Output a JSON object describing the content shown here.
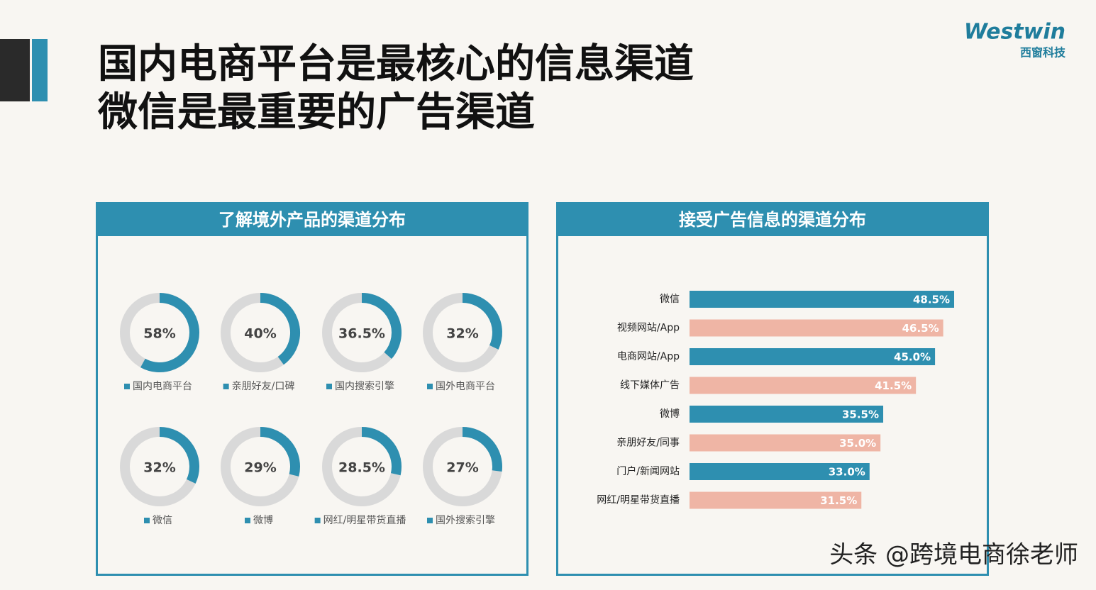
{
  "header": {
    "title": [
      "国内电商平台是最核心的信息渠道",
      "微信是最重要的广告渠道"
    ],
    "logo": "Westwin",
    "logo_sub": "西窗科技"
  },
  "chart_data": [
    {
      "type": "donut",
      "title": "了解境外产品的渠道分布",
      "categories": [
        "国内电商平台",
        "亲朋好友/口碑",
        "国内搜索引擎",
        "国外电商平台",
        "微信",
        "微博",
        "网红/明星带货直播",
        "国外搜索引擎"
      ],
      "values": [
        58,
        40,
        36.5,
        32,
        32,
        29,
        28.5,
        27
      ],
      "value_labels": [
        "58%",
        "40%",
        "36.5%",
        "32%",
        "32%",
        "29%",
        "28.5%",
        "27%"
      ],
      "color": "#2e8fb0",
      "track_color": "#d9d9d9"
    },
    {
      "type": "bar",
      "orientation": "horizontal",
      "title": "接受广告信息的渠道分布",
      "categories": [
        "微信",
        "视频网站/App",
        "电商网站/App",
        "线下媒体广告",
        "微博",
        "亲朋好友/同事",
        "门户/新闻网站",
        "网红/明星带货直播"
      ],
      "values": [
        48.5,
        46.5,
        45.0,
        41.5,
        35.5,
        35.0,
        33.0,
        31.5
      ],
      "value_labels": [
        "48.5%",
        "46.5%",
        "45.0%",
        "41.5%",
        "35.5%",
        "35.0%",
        "33.0%",
        "31.5%"
      ],
      "colors": [
        "#2e8fb0",
        "#efb5a5",
        "#2e8fb0",
        "#efb5a5",
        "#2e8fb0",
        "#efb5a5",
        "#2e8fb0",
        "#efb5a5"
      ],
      "xlim": [
        0,
        55
      ]
    }
  ],
  "watermark": "头条 @跨境电商徐老师"
}
